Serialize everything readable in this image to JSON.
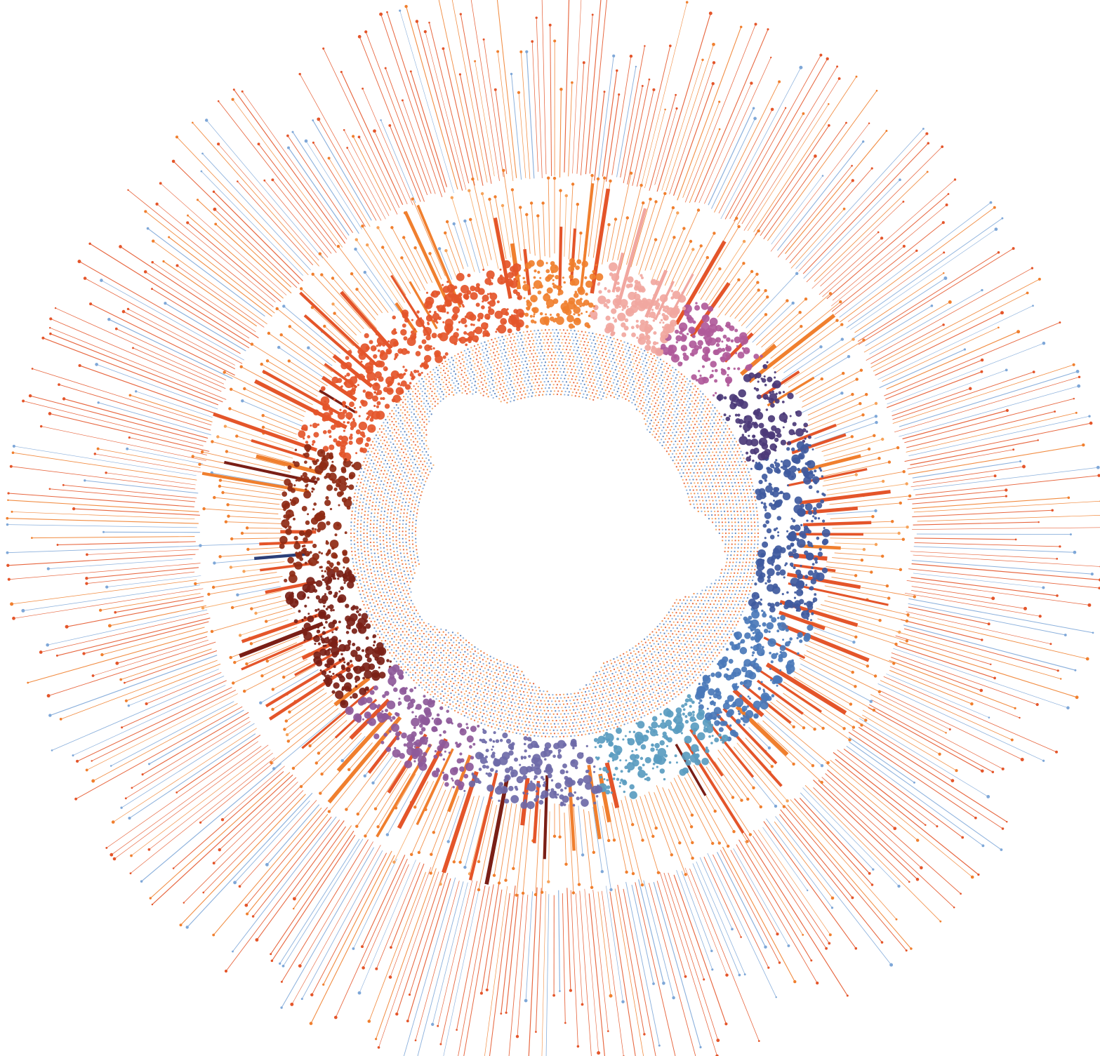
{
  "artwork": {
    "kind": "radial data visualization",
    "colors": {
      "background": "#ffffff",
      "orange_red": "#e4552a",
      "orange": "#f07f2e",
      "light_orange": "#f6a35a",
      "pink": "#f1a7a0",
      "magenta": "#b05a9a",
      "purple": "#6e3f86",
      "dark_purple": "#4b3a78",
      "indigo": "#3f5a9e",
      "blue": "#4a78b8",
      "light_blue": "#7ea7d8",
      "teal_blue": "#5a9cc0",
      "dark_red": "#7a1f16",
      "brown_red": "#8e2a14",
      "navy": "#2c3f78"
    },
    "inner_band_palette": [
      "#e4552a",
      "#f07f2e",
      "#7ea7d8",
      "#4a78b8",
      "#f6a35a"
    ],
    "spike_palette": [
      "#e4552a",
      "#e4552a",
      "#e4552a",
      "#7ea7d8",
      "#f07f2e"
    ],
    "dot_palette_sectors": [
      {
        "from_deg": 200,
        "to_deg": 262,
        "color": "#e4552a"
      },
      {
        "from_deg": 262,
        "to_deg": 280,
        "color": "#f07f2e"
      },
      {
        "from_deg": 280,
        "to_deg": 300,
        "color": "#f1a7a0"
      },
      {
        "from_deg": 300,
        "to_deg": 320,
        "color": "#b05a9a"
      },
      {
        "from_deg": 320,
        "to_deg": 340,
        "color": "#4b3a78"
      },
      {
        "from_deg": 340,
        "to_deg": 380,
        "color": "#3f5a9e"
      },
      {
        "from_deg": 380,
        "to_deg": 410,
        "color": "#4a78b8"
      },
      {
        "from_deg": 410,
        "to_deg": 440,
        "color": "#5a9cc0"
      },
      {
        "from_deg": 440,
        "to_deg": 470,
        "color": "#6e6aa8"
      },
      {
        "from_deg": 470,
        "to_deg": 500,
        "color": "#8e5a9a"
      },
      {
        "from_deg": 500,
        "to_deg": 530,
        "color": "#7a1f16"
      },
      {
        "from_deg": 530,
        "to_deg": 560,
        "color": "#8e2a14"
      }
    ]
  }
}
